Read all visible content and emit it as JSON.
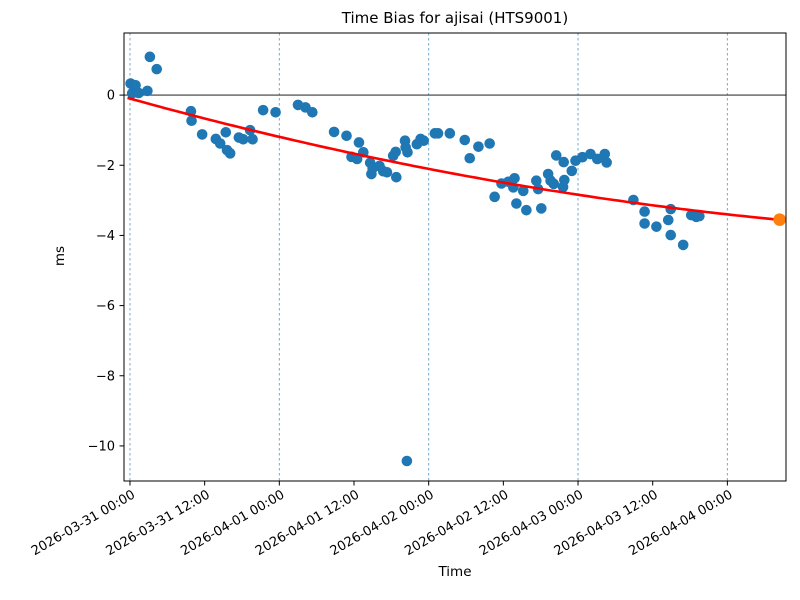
{
  "chart_data": {
    "type": "scatter",
    "title": "Time Bias for ajisai (HTS9001)",
    "xlabel": "Time",
    "ylabel": "ms",
    "x_unit": "hours since 2026-03-31 00:00",
    "x_range": [
      -0.96,
      105.42
    ],
    "y_range": [
      -11.0,
      1.77
    ],
    "grid": "vertical dashed lines at each day boundary",
    "legend": "none",
    "x_ticks": [
      {
        "t": 0,
        "label": "2026-03-31 00:00"
      },
      {
        "t": 12,
        "label": "2026-03-31 12:00"
      },
      {
        "t": 24,
        "label": "2026-04-01 00:00"
      },
      {
        "t": 36,
        "label": "2026-04-01 12:00"
      },
      {
        "t": 48,
        "label": "2026-04-02 00:00"
      },
      {
        "t": 60,
        "label": "2026-04-02 12:00"
      },
      {
        "t": 72,
        "label": "2026-04-03 00:00"
      },
      {
        "t": 84,
        "label": "2026-04-03 12:00"
      },
      {
        "t": 96,
        "label": "2026-04-04 00:00"
      }
    ],
    "y_ticks": [
      {
        "v": 0,
        "label": "0"
      },
      {
        "v": -2,
        "label": "−2"
      },
      {
        "v": -4,
        "label": "−4"
      },
      {
        "v": -6,
        "label": "−6"
      },
      {
        "v": -8,
        "label": "−8"
      },
      {
        "v": -10,
        "label": "−10"
      }
    ],
    "gridlines_hours": [
      0,
      24,
      48,
      72,
      96
    ],
    "zero_line": true,
    "colors": {
      "scatter": "#1f77b4",
      "fit_line": "#ff0000",
      "prediction": "#ff7f0e",
      "gridline": "#4f94c4",
      "zero_line": "#000000",
      "spine": "#000000",
      "text": "#000000",
      "background": "#ffffff"
    },
    "series": [
      {
        "name": "time-bias-observations",
        "type": "scatter",
        "color": "#1f77b4",
        "marker_radius": 5.3,
        "points": [
          [
            0.1,
            0.33
          ],
          [
            0.9,
            0.28
          ],
          [
            0.35,
            0.05
          ],
          [
            1.4,
            0.06
          ],
          [
            2.8,
            0.12
          ],
          [
            3.2,
            1.09
          ],
          [
            4.3,
            0.74
          ],
          [
            9.8,
            -0.46
          ],
          [
            9.9,
            -0.73
          ],
          [
            11.6,
            -1.12
          ],
          [
            13.8,
            -1.25
          ],
          [
            14.5,
            -1.38
          ],
          [
            15.4,
            -1.06
          ],
          [
            15.6,
            -1.57
          ],
          [
            16.1,
            -1.66
          ],
          [
            17.5,
            -1.21
          ],
          [
            18.2,
            -1.26
          ],
          [
            19.3,
            -1.0
          ],
          [
            19.7,
            -1.26
          ],
          [
            21.4,
            -0.43
          ],
          [
            23.4,
            -0.49
          ],
          [
            27.0,
            -0.28
          ],
          [
            28.2,
            -0.35
          ],
          [
            29.3,
            -0.49
          ],
          [
            32.8,
            -1.05
          ],
          [
            34.8,
            -1.16
          ],
          [
            35.6,
            -1.76
          ],
          [
            36.5,
            -1.82
          ],
          [
            36.8,
            -1.35
          ],
          [
            37.5,
            -1.63
          ],
          [
            38.6,
            -1.93
          ],
          [
            38.8,
            -2.25
          ],
          [
            39.0,
            -2.09
          ],
          [
            40.1,
            -2.02
          ],
          [
            40.7,
            -2.17
          ],
          [
            41.3,
            -2.2
          ],
          [
            42.3,
            -1.73
          ],
          [
            42.7,
            -1.62
          ],
          [
            42.8,
            -2.34
          ],
          [
            44.2,
            -1.3
          ],
          [
            44.3,
            -1.49
          ],
          [
            44.6,
            -1.63
          ],
          [
            44.5,
            -10.43
          ],
          [
            46.1,
            -1.4
          ],
          [
            46.7,
            -1.25
          ],
          [
            47.2,
            -1.3
          ],
          [
            49.0,
            -1.09
          ],
          [
            49.5,
            -1.09
          ],
          [
            51.4,
            -1.09
          ],
          [
            53.8,
            -1.28
          ],
          [
            54.6,
            -1.8
          ],
          [
            56.0,
            -1.47
          ],
          [
            57.8,
            -1.38
          ],
          [
            58.6,
            -2.9
          ],
          [
            59.7,
            -2.52
          ],
          [
            60.8,
            -2.47
          ],
          [
            61.6,
            -2.63
          ],
          [
            61.8,
            -2.37
          ],
          [
            62.1,
            -3.09
          ],
          [
            63.2,
            -2.73
          ],
          [
            63.7,
            -3.28
          ],
          [
            65.3,
            -2.44
          ],
          [
            65.6,
            -2.68
          ],
          [
            66.1,
            -3.23
          ],
          [
            67.2,
            -2.25
          ],
          [
            67.6,
            -2.44
          ],
          [
            68.1,
            -2.53
          ],
          [
            68.5,
            -1.72
          ],
          [
            69.6,
            -2.62
          ],
          [
            69.7,
            -1.91
          ],
          [
            69.8,
            -2.42
          ],
          [
            71.0,
            -2.16
          ],
          [
            71.6,
            -1.87
          ],
          [
            72.7,
            -1.77
          ],
          [
            74.0,
            -1.68
          ],
          [
            75.1,
            -1.82
          ],
          [
            76.3,
            -1.68
          ],
          [
            76.6,
            -1.92
          ],
          [
            80.9,
            -2.99
          ],
          [
            82.7,
            -3.32
          ],
          [
            82.7,
            -3.66
          ],
          [
            84.6,
            -3.75
          ],
          [
            86.5,
            -3.56
          ],
          [
            86.9,
            -3.25
          ],
          [
            86.9,
            -3.99
          ],
          [
            88.9,
            -4.27
          ],
          [
            90.2,
            -3.42
          ],
          [
            91.0,
            -3.47
          ],
          [
            91.5,
            -3.45
          ]
        ]
      },
      {
        "name": "polynomial-fit",
        "type": "line",
        "color": "#ff0000",
        "line_width": 2.6,
        "quadratic_coeffs": [
          -0.1,
          -0.0491,
          0.0001534
        ],
        "t_start": -0.4,
        "t_end": 104.4
      },
      {
        "name": "predicted-bias",
        "type": "scatter",
        "color": "#ff7f0e",
        "marker_radius": 6.3,
        "points": [
          [
            104.4,
            -3.55
          ]
        ]
      }
    ]
  }
}
